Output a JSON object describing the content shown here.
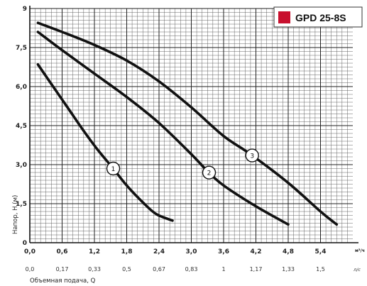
{
  "chart_data": {
    "type": "line",
    "title": "GPD 25-8S",
    "accent_color": "#c8102e",
    "xlabel": "Объемная подача, Q",
    "ylabel": "Напор, H (м)",
    "x_unit": "м³/ч",
    "x2_unit": "л/с",
    "xlim": [
      0,
      6.0
    ],
    "ylim": [
      0,
      9
    ],
    "x_ticks": [
      "0,0",
      "0,6",
      "1,2",
      "1,8",
      "2,4",
      "3,0",
      "3,6",
      "4,2",
      "4,8",
      "5,4"
    ],
    "x_tick_values": [
      0,
      0.6,
      1.2,
      1.8,
      2.4,
      3.0,
      3.6,
      4.2,
      4.8,
      5.4
    ],
    "x2_ticks": [
      "0,0",
      "0,17",
      "0,33",
      "0,5",
      "0,67",
      "0,83",
      "1",
      "1,17",
      "1,33",
      "1,5"
    ],
    "y_ticks": [
      "0",
      "1,5",
      "3,0",
      "4,5",
      "6,0",
      "7,5",
      "9"
    ],
    "y_tick_values": [
      0,
      1.5,
      3.0,
      4.5,
      6.0,
      7.5,
      9
    ],
    "grid": true,
    "series": [
      {
        "name": "1",
        "x": [
          0.15,
          0.4,
          0.7,
          1.0,
          1.25,
          1.55,
          1.8,
          2.1,
          2.35,
          2.65
        ],
        "y": [
          6.85,
          6.1,
          5.2,
          4.3,
          3.6,
          2.85,
          2.2,
          1.55,
          1.1,
          0.85
        ],
        "marker_at": 1.55
      },
      {
        "name": "2",
        "x": [
          0.15,
          0.6,
          1.2,
          1.8,
          2.4,
          3.0,
          3.3,
          3.6,
          4.2,
          4.8
        ],
        "y": [
          8.1,
          7.4,
          6.5,
          5.6,
          4.6,
          3.4,
          2.75,
          2.2,
          1.4,
          0.7
        ],
        "marker_at": 3.33
      },
      {
        "name": "3",
        "x": [
          0.15,
          0.6,
          1.2,
          1.8,
          2.4,
          3.0,
          3.6,
          4.1,
          4.8,
          5.4,
          5.7
        ],
        "y": [
          8.45,
          8.1,
          7.6,
          7.0,
          6.2,
          5.2,
          4.1,
          3.4,
          2.3,
          1.2,
          0.7
        ],
        "marker_at": 4.13
      }
    ]
  }
}
